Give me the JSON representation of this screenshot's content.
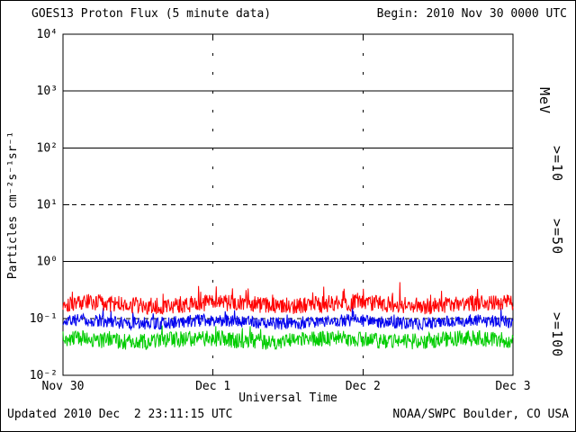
{
  "window": {
    "background": "#ffffff",
    "frame_color": "#000000"
  },
  "header": {
    "title": "GOES13 Proton Flux (5 minute data)",
    "begin_label": "Begin: 2010 Nov 30 0000 UTC"
  },
  "footer": {
    "updated": "Updated 2010 Dec  2 23:11:15 UTC",
    "source": "NOAA/SWPC Boulder, CO USA"
  },
  "chart_data": {
    "type": "line",
    "title": "GOES13 Proton Flux (5 minute data)",
    "xlabel": "Universal Time",
    "ylabel": "Particles cm⁻²s⁻¹sr⁻¹",
    "y_scale": "log10",
    "ylim": [
      0.01,
      10000
    ],
    "ylim_exponents": [
      -2,
      4
    ],
    "y_ticks": [
      {
        "exp": 4,
        "label": "10⁴"
      },
      {
        "exp": 3,
        "label": "10³"
      },
      {
        "exp": 2,
        "label": "10²"
      },
      {
        "exp": 1,
        "label": "10¹"
      },
      {
        "exp": 0,
        "label": "10⁰"
      },
      {
        "exp": -1,
        "label": "10⁻¹"
      },
      {
        "exp": -2,
        "label": "10⁻²"
      }
    ],
    "x_ticks": [
      {
        "day": 0,
        "label": "Nov 30"
      },
      {
        "day": 1,
        "label": "Dec 1"
      },
      {
        "day": 2,
        "label": "Dec 2"
      },
      {
        "day": 3,
        "label": "Dec 3"
      }
    ],
    "x_range_days": 3,
    "points_per_day": 288,
    "unit_label": "MeV",
    "grid": {
      "solid_exponents": [
        3,
        2,
        0
      ],
      "dashed_exponents": [
        1,
        -1
      ],
      "vline_days": [
        1,
        2
      ]
    },
    "legend_position": "right",
    "series": [
      {
        "name": "ge10",
        "label": ">=10",
        "color": "#ff0000",
        "approx_mean_flux": 0.18,
        "approx_flux_range": [
          0.09,
          0.45
        ],
        "log_mean": -0.75,
        "log_band": 0.3,
        "spike_prob": 0.05,
        "spike_amp": 0.3,
        "seed": 101
      },
      {
        "name": "ge50",
        "label": ">=50",
        "color": "#0000ee",
        "approx_mean_flux": 0.085,
        "approx_flux_range": [
          0.05,
          0.13
        ],
        "log_mean": -1.06,
        "log_band": 0.22,
        "spike_prob": 0.04,
        "spike_amp": 0.18,
        "seed": 202
      },
      {
        "name": "ge100",
        "label": ">=100",
        "color": "#00cc00",
        "approx_mean_flux": 0.042,
        "approx_flux_range": [
          0.028,
          0.07
        ],
        "log_mean": -1.38,
        "log_band": 0.28,
        "spike_prob": 0.04,
        "spike_amp": 0.16,
        "seed": 303
      }
    ]
  }
}
